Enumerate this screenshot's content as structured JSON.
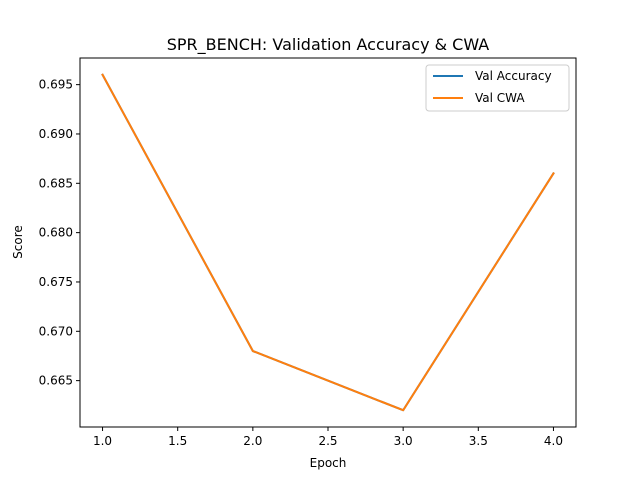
{
  "chart_data": {
    "type": "line",
    "title": "SPR_BENCH: Validation Accuracy & CWA",
    "xlabel": "Epoch",
    "ylabel": "Score",
    "x": [
      1,
      2,
      3,
      4
    ],
    "xlim": [
      0.85,
      4.15
    ],
    "ylim": [
      0.6603,
      0.6977
    ],
    "xticks": [
      1.0,
      1.5,
      2.0,
      2.5,
      3.0,
      3.5,
      4.0
    ],
    "xtick_labels": [
      "1.0",
      "1.5",
      "2.0",
      "2.5",
      "3.0",
      "3.5",
      "4.0"
    ],
    "yticks": [
      0.665,
      0.67,
      0.675,
      0.68,
      0.685,
      0.69,
      0.695
    ],
    "ytick_labels": [
      "0.665",
      "0.670",
      "0.675",
      "0.680",
      "0.685",
      "0.690",
      "0.695"
    ],
    "grid": false,
    "legend_position": "top-right",
    "series": [
      {
        "name": "Val Accuracy",
        "values": [
          0.696,
          0.668,
          0.662,
          0.686
        ],
        "color": "#1f77b4"
      },
      {
        "name": "Val CWA",
        "values": [
          0.696,
          0.668,
          0.662,
          0.686
        ],
        "color": "#ff7f0e"
      }
    ]
  }
}
